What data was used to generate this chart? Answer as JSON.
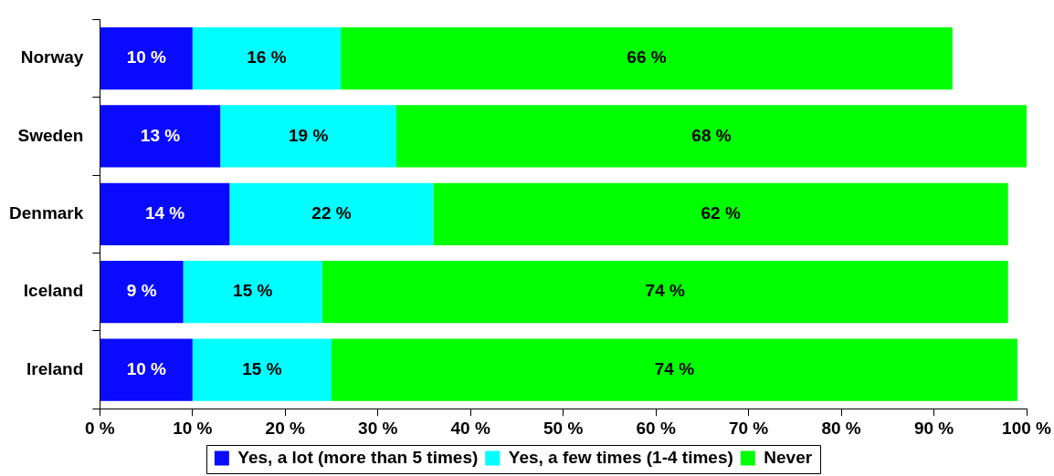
{
  "chart_data": {
    "type": "bar",
    "orientation": "horizontal",
    "stacked": true,
    "categories": [
      "Norway",
      "Sweden",
      "Denmark",
      "Iceland",
      "Ireland"
    ],
    "series": [
      {
        "name": "Yes, a lot (more than 5 times)",
        "color": "#0a0aff",
        "values": [
          10,
          13,
          14,
          9,
          10
        ],
        "value_labels": [
          "10 %",
          "13 %",
          "14 %",
          "9 %",
          "10 %"
        ]
      },
      {
        "name": "Yes, a few times (1-4 times)",
        "color": "#00ffff",
        "values": [
          16,
          19,
          22,
          15,
          15
        ],
        "value_labels": [
          "16 %",
          "19 %",
          "22 %",
          "15 %",
          "15 %"
        ]
      },
      {
        "name": "Never",
        "color": "#00ff00",
        "values": [
          66,
          68,
          62,
          74,
          74
        ],
        "value_labels": [
          "66 %",
          "68 %",
          "62 %",
          "74 %",
          "74 %"
        ]
      }
    ],
    "xlim": [
      0,
      100
    ],
    "xticks": [
      {
        "value": 0,
        "label": "0 %"
      },
      {
        "value": 10,
        "label": "10 %"
      },
      {
        "value": 20,
        "label": "20 %"
      },
      {
        "value": 30,
        "label": "30 %"
      },
      {
        "value": 40,
        "label": "40 %"
      },
      {
        "value": 50,
        "label": "50 %"
      },
      {
        "value": 60,
        "label": "60 %"
      },
      {
        "value": 70,
        "label": "70 %"
      },
      {
        "value": 80,
        "label": "80 %"
      },
      {
        "value": 90,
        "label": "90 %"
      },
      {
        "value": 100,
        "label": "100 %"
      }
    ],
    "grid": false,
    "legend": "bottom"
  }
}
